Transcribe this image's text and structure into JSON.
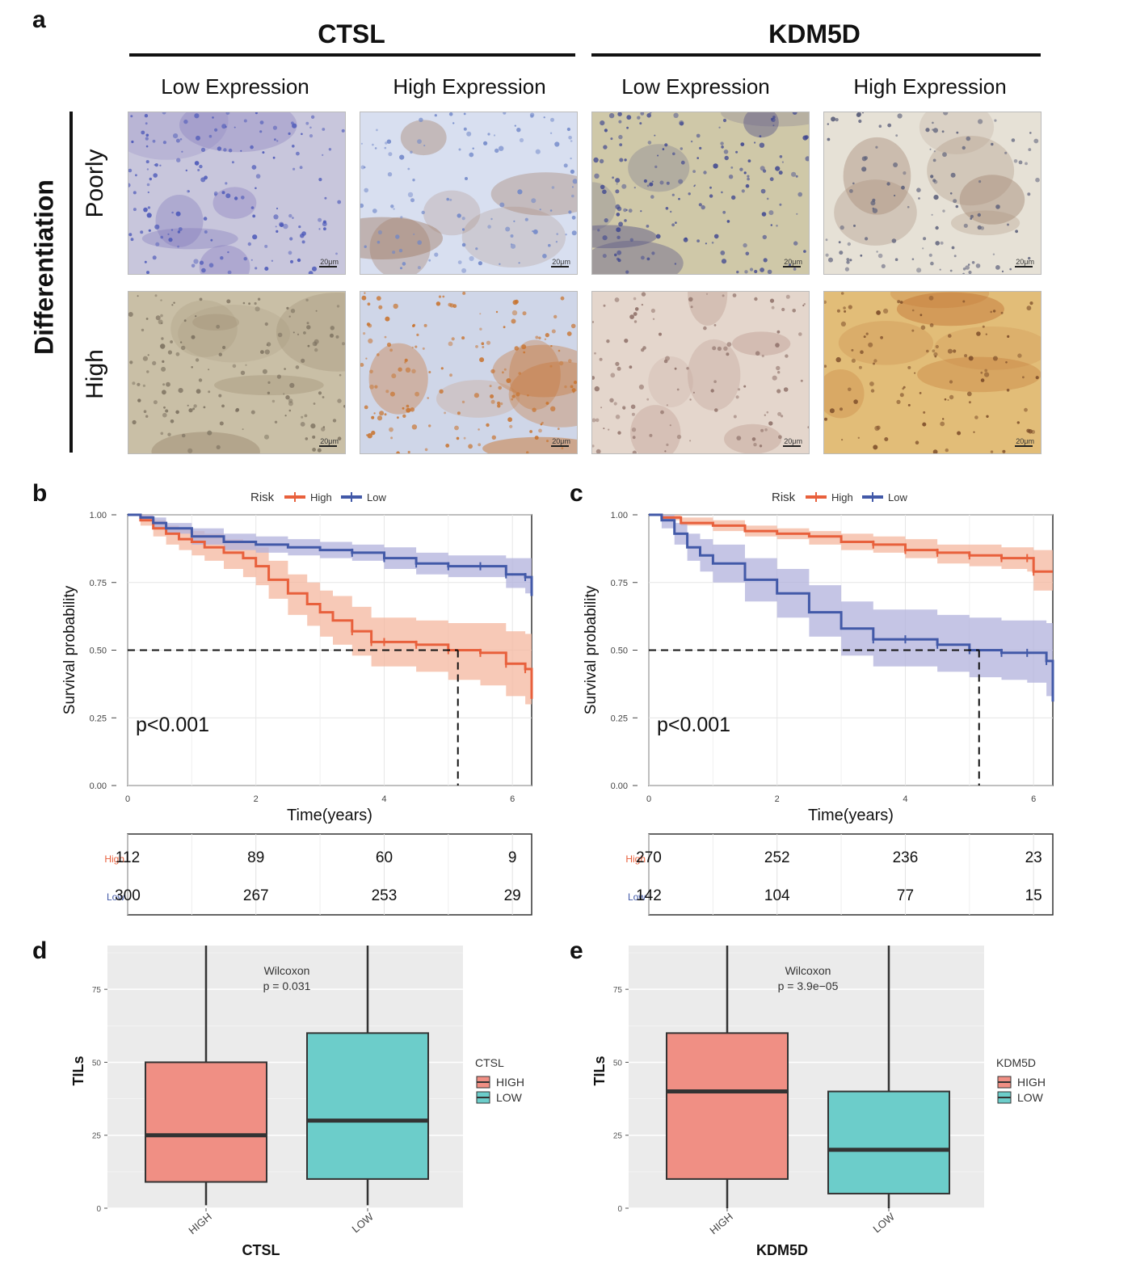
{
  "panel_a": {
    "label": "a",
    "genes": [
      "CTSL",
      "KDM5D"
    ],
    "expression_levels": [
      "Low Expression",
      "High Expression",
      "Low Expression",
      "High Expression"
    ],
    "axis_title": "Differentiation",
    "row_labels": [
      "Poorly",
      "High"
    ],
    "scale_label": "20μm",
    "tiles": [
      {
        "gene": "CTSL",
        "expr": "Low",
        "diff": "Poorly",
        "base": "#c8c6dc",
        "cell": "#4a57b8",
        "density": 0.75,
        "stain": "#7a6fb8"
      },
      {
        "gene": "CTSL",
        "expr": "High",
        "diff": "Poorly",
        "base": "#d8dff0",
        "cell": "#6f86c8",
        "density": 0.45,
        "stain": "#a07860"
      },
      {
        "gene": "KDM5D",
        "expr": "Low",
        "diff": "Poorly",
        "base": "#cfc8a8",
        "cell": "#3e4690",
        "density": 0.8,
        "stain": "#5d5a88"
      },
      {
        "gene": "KDM5D",
        "expr": "High",
        "diff": "Poorly",
        "base": "#e6e1d6",
        "cell": "#5b5f7a",
        "density": 0.5,
        "stain": "#a68c78"
      },
      {
        "gene": "CTSL",
        "expr": "Low",
        "diff": "High",
        "base": "#c9bfa6",
        "cell": "#7a6f5e",
        "density": 0.65,
        "stain": "#9a8a70"
      },
      {
        "gene": "CTSL",
        "expr": "High",
        "diff": "High",
        "base": "#cfd6e8",
        "cell": "#c8732e",
        "density": 0.7,
        "stain": "#c8702a"
      },
      {
        "gene": "KDM5D",
        "expr": "Low",
        "diff": "High",
        "base": "#e4d6cc",
        "cell": "#8e7068",
        "density": 0.45,
        "stain": "#b89488"
      },
      {
        "gene": "KDM5D",
        "expr": "High",
        "diff": "High",
        "base": "#e2bd78",
        "cell": "#7a4a28",
        "density": 0.4,
        "stain": "#c07030"
      }
    ]
  },
  "chart_data": [
    {
      "id": "b",
      "label": "b",
      "type": "line",
      "subtype": "kaplan-meier",
      "legend_title": "Risk",
      "legend_position": "top",
      "xlabel": "Time(years)",
      "ylabel": "Survival probability",
      "xlim": [
        0,
        6.3
      ],
      "ylim": [
        0,
        1
      ],
      "xticks": [
        0,
        2,
        4,
        6
      ],
      "yticks": [
        "0.00",
        "0.25",
        "0.50",
        "0.75",
        "1.00"
      ],
      "pvalue": "p<0.001",
      "median_line": {
        "y": 0.5,
        "x": 5.15
      },
      "series": [
        {
          "name": "High",
          "color": "#e8603c",
          "band": "#f4b79f",
          "x": [
            0,
            0.2,
            0.4,
            0.6,
            0.8,
            1.0,
            1.2,
            1.5,
            1.8,
            2.0,
            2.2,
            2.5,
            2.8,
            3.0,
            3.2,
            3.5,
            3.8,
            4.0,
            4.5,
            5.0,
            5.5,
            5.9,
            6.2,
            6.3
          ],
          "y": [
            1.0,
            0.98,
            0.95,
            0.93,
            0.91,
            0.9,
            0.88,
            0.86,
            0.84,
            0.81,
            0.76,
            0.71,
            0.67,
            0.64,
            0.61,
            0.57,
            0.53,
            0.53,
            0.52,
            0.5,
            0.49,
            0.45,
            0.43,
            0.32
          ],
          "lower": [
            1.0,
            0.96,
            0.92,
            0.89,
            0.87,
            0.85,
            0.83,
            0.8,
            0.77,
            0.74,
            0.69,
            0.63,
            0.59,
            0.55,
            0.52,
            0.48,
            0.44,
            0.44,
            0.42,
            0.39,
            0.37,
            0.33,
            0.3,
            0.12
          ],
          "upper": [
            1.0,
            1.0,
            0.98,
            0.96,
            0.95,
            0.94,
            0.93,
            0.91,
            0.9,
            0.88,
            0.83,
            0.78,
            0.75,
            0.72,
            0.7,
            0.66,
            0.62,
            0.62,
            0.61,
            0.6,
            0.6,
            0.57,
            0.56,
            0.55
          ]
        },
        {
          "name": "Low",
          "color": "#4259a8",
          "band": "#b2b2dc",
          "x": [
            0,
            0.2,
            0.4,
            0.6,
            1.0,
            1.5,
            2.0,
            2.5,
            3.0,
            3.5,
            4.0,
            4.5,
            5.0,
            5.5,
            5.9,
            6.2,
            6.3
          ],
          "y": [
            1.0,
            0.99,
            0.97,
            0.95,
            0.92,
            0.9,
            0.89,
            0.88,
            0.87,
            0.86,
            0.84,
            0.82,
            0.81,
            0.81,
            0.78,
            0.77,
            0.7
          ],
          "lower": [
            1.0,
            0.98,
            0.95,
            0.93,
            0.89,
            0.87,
            0.86,
            0.85,
            0.84,
            0.83,
            0.8,
            0.78,
            0.77,
            0.77,
            0.73,
            0.71,
            0.53
          ],
          "upper": [
            1.0,
            1.0,
            0.99,
            0.97,
            0.95,
            0.93,
            0.92,
            0.91,
            0.9,
            0.89,
            0.88,
            0.86,
            0.85,
            0.85,
            0.84,
            0.84,
            0.84
          ]
        }
      ],
      "risk_table": {
        "groups": [
          "High",
          "Low"
        ],
        "times": [
          0,
          2,
          4,
          6
        ],
        "values": [
          [
            "112",
            "89",
            "60",
            "9"
          ],
          [
            "300",
            "267",
            "253",
            "29"
          ]
        ]
      }
    },
    {
      "id": "c",
      "label": "c",
      "type": "line",
      "subtype": "kaplan-meier",
      "legend_title": "Risk",
      "legend_position": "top",
      "xlabel": "Time(years)",
      "ylabel": "Survival probability",
      "xlim": [
        0,
        6.3
      ],
      "ylim": [
        0,
        1
      ],
      "xticks": [
        0,
        2,
        4,
        6
      ],
      "yticks": [
        "0.00",
        "0.25",
        "0.50",
        "0.75",
        "1.00"
      ],
      "pvalue": "p<0.001",
      "median_line": {
        "y": 0.5,
        "x": 5.15
      },
      "series": [
        {
          "name": "High",
          "color": "#e8603c",
          "band": "#f4b79f",
          "x": [
            0,
            0.2,
            0.5,
            1.0,
            1.5,
            2.0,
            2.5,
            3.0,
            3.5,
            4.0,
            4.5,
            5.0,
            5.5,
            5.9,
            6.0,
            6.3
          ],
          "y": [
            1.0,
            0.99,
            0.97,
            0.96,
            0.94,
            0.93,
            0.92,
            0.9,
            0.89,
            0.87,
            0.86,
            0.85,
            0.84,
            0.84,
            0.79,
            0.79
          ],
          "lower": [
            1.0,
            0.98,
            0.96,
            0.94,
            0.92,
            0.91,
            0.89,
            0.87,
            0.86,
            0.84,
            0.82,
            0.81,
            0.8,
            0.79,
            0.72,
            0.72
          ],
          "upper": [
            1.0,
            1.0,
            0.99,
            0.98,
            0.96,
            0.95,
            0.94,
            0.93,
            0.92,
            0.91,
            0.89,
            0.89,
            0.88,
            0.88,
            0.87,
            0.87
          ]
        },
        {
          "name": "Low",
          "color": "#4259a8",
          "band": "#b2b2dc",
          "x": [
            0,
            0.2,
            0.4,
            0.6,
            0.8,
            1.0,
            1.5,
            2.0,
            2.5,
            3.0,
            3.5,
            4.0,
            4.5,
            5.0,
            5.5,
            5.9,
            6.2,
            6.3
          ],
          "y": [
            1.0,
            0.98,
            0.93,
            0.88,
            0.85,
            0.82,
            0.76,
            0.71,
            0.64,
            0.58,
            0.54,
            0.54,
            0.52,
            0.5,
            0.49,
            0.49,
            0.46,
            0.31
          ],
          "lower": [
            1.0,
            0.95,
            0.89,
            0.83,
            0.79,
            0.75,
            0.68,
            0.62,
            0.55,
            0.48,
            0.44,
            0.44,
            0.42,
            0.4,
            0.39,
            0.38,
            0.33,
            0.17
          ],
          "upper": [
            1.0,
            1.0,
            0.97,
            0.93,
            0.91,
            0.89,
            0.84,
            0.8,
            0.74,
            0.68,
            0.65,
            0.65,
            0.63,
            0.62,
            0.61,
            0.61,
            0.6,
            0.6
          ]
        }
      ],
      "risk_table": {
        "groups": [
          "High",
          "Low"
        ],
        "times": [
          0,
          2,
          4,
          6
        ],
        "values": [
          [
            "270",
            "252",
            "236",
            "23"
          ],
          [
            "142",
            "104",
            "77",
            "15"
          ]
        ]
      }
    },
    {
      "id": "d",
      "label": "d",
      "type": "box",
      "title": "Wilcoxon",
      "subtitle": "p = 0.031",
      "xlabel": "CTSL",
      "ylabel": "TILs",
      "ylim": [
        0,
        90
      ],
      "yticks": [
        0,
        25,
        50,
        75
      ],
      "legend_title": "CTSL",
      "legend_position": "right",
      "categories": [
        "HIGH",
        "LOW"
      ],
      "series": [
        {
          "name": "HIGH",
          "color": "#f08f84",
          "min": 1,
          "q1": 9,
          "median": 25,
          "q3": 50,
          "max": 90
        },
        {
          "name": "LOW",
          "color": "#6ccdca",
          "min": 1,
          "q1": 10,
          "median": 30,
          "q3": 60,
          "max": 90
        }
      ]
    },
    {
      "id": "e",
      "label": "e",
      "type": "box",
      "title": "Wilcoxon",
      "subtitle": "p = 3.9e−05",
      "xlabel": "KDM5D",
      "ylabel": "TILs",
      "ylim": [
        0,
        90
      ],
      "yticks": [
        0,
        25,
        50,
        75
      ],
      "legend_title": "KDM5D",
      "legend_position": "right",
      "categories": [
        "HIGH",
        "LOW"
      ],
      "series": [
        {
          "name": "HIGH",
          "color": "#f08f84",
          "min": 0,
          "q1": 10,
          "median": 40,
          "q3": 60,
          "max": 90
        },
        {
          "name": "LOW",
          "color": "#6ccdca",
          "min": 0,
          "q1": 5,
          "median": 20,
          "q3": 40,
          "max": 90
        }
      ]
    }
  ]
}
